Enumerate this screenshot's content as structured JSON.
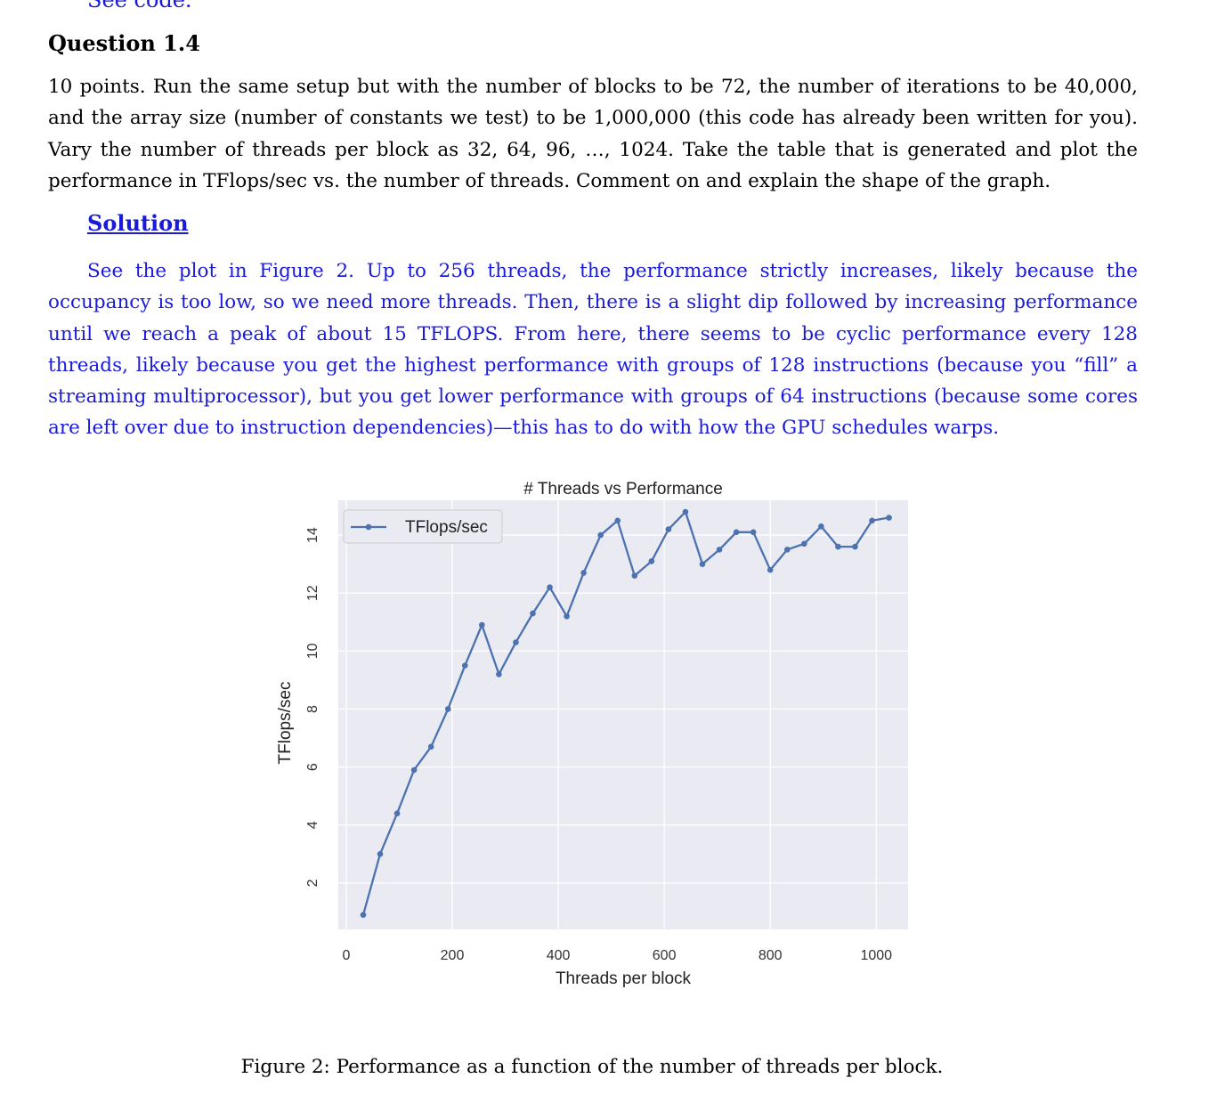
{
  "top_cut_text": "See code.",
  "question": {
    "heading": "Question 1.4",
    "body": "10 points. Run the same setup but with the number of blocks to be 72, the number of iterations to be 40,000, and the array size (number of constants we test) to be 1,000,000 (this code has already been written for you). Vary the number of threads per block as 32, 64, 96, …, 1024. Take the table that is generated and plot the performance in TFlops/sec vs. the number of threads. Comment on and explain the shape of the graph."
  },
  "solution": {
    "heading": "Solution",
    "body": "See the plot in Figure 2. Up to 256 threads, the performance strictly increases, likely because the occupancy is too low, so we need more threads. Then, there is a slight dip followed by increasing performance until we reach a peak of about 15 TFLOPS. From here, there seems to be cyclic performance every 128 threads, likely because you get the highest performance with groups of 128 instructions (because you “fill” a streaming multiprocessor), but you get lower performance with groups of 64 instructions (because some cores are left over due to instruction dependencies)—this has to do with how the GPU schedules warps."
  },
  "chart_data": {
    "type": "line",
    "title": "# Threads vs Performance",
    "xlabel": "Threads per block",
    "ylabel": "TFlops/sec",
    "xlim": [
      -15,
      1060
    ],
    "ylim": [
      0.4,
      15.2
    ],
    "xticks": [
      0,
      200,
      400,
      600,
      800,
      1000
    ],
    "yticks": [
      2,
      4,
      6,
      8,
      10,
      12,
      14
    ],
    "grid": true,
    "legend_position": "top-left",
    "line_color": "#4c72b0",
    "background_color": "#eaeaf2",
    "series": [
      {
        "name": "TFlops/sec",
        "x": [
          32,
          64,
          96,
          128,
          160,
          192,
          224,
          256,
          288,
          320,
          352,
          384,
          416,
          448,
          480,
          512,
          544,
          576,
          608,
          640,
          672,
          704,
          736,
          768,
          800,
          832,
          864,
          896,
          928,
          960,
          992,
          1024
        ],
        "y": [
          0.9,
          3.0,
          4.4,
          5.9,
          6.7,
          8.0,
          9.5,
          10.9,
          9.2,
          10.3,
          11.3,
          12.2,
          11.2,
          12.7,
          14.0,
          14.5,
          12.6,
          13.1,
          14.2,
          14.8,
          13.0,
          13.5,
          14.1,
          14.1,
          12.8,
          13.5,
          13.7,
          14.3,
          13.6,
          13.6,
          14.5,
          14.6
        ]
      }
    ]
  },
  "caption": "Figure 2: Performance as a function of the number of threads per block."
}
